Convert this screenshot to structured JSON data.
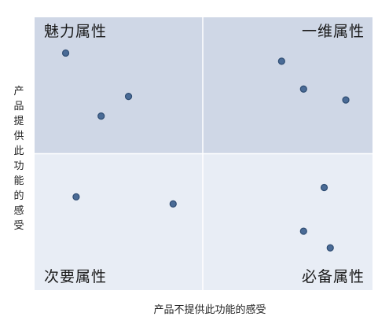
{
  "chart_data": {
    "type": "scatter",
    "xlabel": "产品不提供此功能的感受",
    "ylabel": "产品提供此功能的感受",
    "xlim": [
      0,
      1
    ],
    "ylim": [
      0,
      1
    ],
    "grid": false,
    "quadrants": [
      {
        "position": "top-left",
        "label": "魅力属性",
        "color": "#cfd7e6"
      },
      {
        "position": "top-right",
        "label": "一维属性",
        "color": "#cfd7e6"
      },
      {
        "position": "bottom-left",
        "label": "次要属性",
        "color": "#e8edf5"
      },
      {
        "position": "bottom-right",
        "label": "必备属性",
        "color": "#e8edf5"
      }
    ],
    "points": [
      {
        "x": 0.092,
        "y": 0.869
      },
      {
        "x": 0.197,
        "y": 0.638
      },
      {
        "x": 0.278,
        "y": 0.71
      },
      {
        "x": 0.731,
        "y": 0.839
      },
      {
        "x": 0.796,
        "y": 0.737
      },
      {
        "x": 0.921,
        "y": 0.697
      },
      {
        "x": 0.123,
        "y": 0.342
      },
      {
        "x": 0.41,
        "y": 0.316
      },
      {
        "x": 0.857,
        "y": 0.376
      },
      {
        "x": 0.796,
        "y": 0.216
      },
      {
        "x": 0.875,
        "y": 0.155
      }
    ],
    "colors": {
      "point_fill": "#4a6b96",
      "point_stroke": "#2e4c72",
      "divider": "#ffffff"
    }
  }
}
